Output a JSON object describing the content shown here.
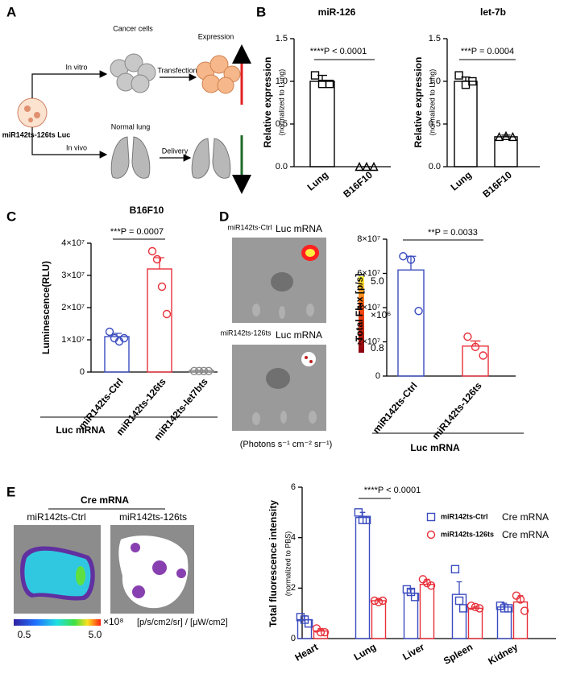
{
  "figure": {
    "panel_labels": [
      "A",
      "B",
      "C",
      "D",
      "E"
    ]
  },
  "schematic": {
    "cancer": "Cancer cells",
    "expression": "Expression",
    "in_vitro": "In vitro",
    "transfection": "Transfection",
    "construct": "miR142ts-126ts Luc",
    "lung": "Normal lung",
    "in_vivo": "In vivo",
    "delivery": "Delivery"
  },
  "imaging_d": {
    "top_prefix": "miR142ts-Ctrl",
    "top_suffix": "Luc mRNA",
    "bottom_prefix": "miR142ts-126ts",
    "bottom_suffix": "Luc mRNA",
    "cbar_max": "5.0",
    "cbar_scale": "×10⁶",
    "cbar_min": "0.8",
    "units": "(Photons s⁻¹ cm⁻² sr⁻¹)"
  },
  "imaging_e": {
    "title": "Cre mRNA",
    "left": "miR142ts-Ctrl",
    "right": "miR142ts-126ts",
    "cbar_min": "0.5",
    "cbar_max": "5.0",
    "cbar_scale": "×10⁸",
    "units": "[p/s/cm2/sr] / [μW/cm2]"
  },
  "chart_data": [
    {
      "type": "bar",
      "title": "miR-126",
      "ylabel": "Relative expression",
      "ylabel_sub": "(normalized to Lung)",
      "categories": [
        "Lung",
        "B16F10"
      ],
      "values": [
        1.0,
        0.0
      ],
      "errors": [
        0.07,
        0
      ],
      "points": [
        [
          1.07,
          0.97,
          0.97
        ],
        [
          0,
          0,
          0
        ]
      ],
      "markers": [
        "square",
        "triangle"
      ],
      "color": "#000000",
      "ylim": [
        0,
        1.5
      ],
      "yticks": [
        {
          "value": 0,
          "label": "0.0"
        },
        0.5,
        {
          "value": 1,
          "label": "1.0"
        },
        1.5
      ],
      "annotation": "****P < 0.0001"
    },
    {
      "type": "bar",
      "title": "let-7b",
      "ylabel": "Relative expression",
      "ylabel_sub": "(normalized to Lung)",
      "categories": [
        "Lung",
        "B16F10"
      ],
      "values": [
        1.0,
        0.35
      ],
      "errors": [
        0.05,
        0.02
      ],
      "points": [
        [
          1.07,
          0.96,
          1.0
        ],
        [
          0.35,
          0.36,
          0.35
        ]
      ],
      "markers": [
        "square",
        "triangle"
      ],
      "color": "#000000",
      "ylim": [
        0,
        1.5
      ],
      "yticks": [
        {
          "value": 0,
          "label": "0.0"
        },
        0.5,
        {
          "value": 1,
          "label": "1.0"
        },
        1.5
      ],
      "annotation": "***P = 0.0004"
    },
    {
      "type": "bar",
      "title": "B16F10",
      "ylabel": "Luminescence(RLU)",
      "categories": [
        "miR142ts-Ctrl",
        "miR142ts-126ts",
        "miR142ts-let7bts"
      ],
      "values": [
        11000000,
        32000000,
        500000
      ],
      "errors": [
        1000000,
        3500000,
        0
      ],
      "points": [
        [
          12500000,
          10500000,
          9500000,
          10500000
        ],
        [
          37500000,
          35000000,
          26500000,
          18000000
        ],
        [
          300000,
          300000,
          300000,
          300000
        ]
      ],
      "colors": [
        "#3b4cc0",
        "#e8303a",
        "#888888"
      ],
      "ylim": [
        0,
        40000000
      ],
      "yticks": [
        0,
        {
          "value": 10000000,
          "label": "1×10⁷"
        },
        {
          "value": 20000000,
          "label": "2×10⁷"
        },
        {
          "value": 30000000,
          "label": "3×10⁷"
        },
        {
          "value": 40000000,
          "label": "4×10⁷"
        }
      ],
      "annotation": "***P = 0.0007",
      "group_label": "Luc mRNA"
    },
    {
      "type": "bar",
      "ylabel": "Total Flux [p/s]",
      "categories": [
        "miR142ts-Ctrl",
        "miR142ts-126ts"
      ],
      "values": [
        62000000,
        17500000
      ],
      "errors": [
        8000000,
        3000000
      ],
      "points": [
        [
          70000000,
          68000000,
          38000000
        ],
        [
          23000000,
          17000000,
          12000000
        ]
      ],
      "colors": [
        "#3b4cc0",
        "#e8303a"
      ],
      "ylim": [
        0,
        80000000
      ],
      "yticks": [
        0,
        {
          "value": 20000000,
          "label": "2×10⁷"
        },
        {
          "value": 40000000,
          "label": "4×10⁷"
        },
        {
          "value": 60000000,
          "label": "6×10⁷"
        },
        {
          "value": 80000000,
          "label": "8×10⁷"
        }
      ],
      "annotation": "**P = 0.0033",
      "group_label": "Luc mRNA"
    },
    {
      "type": "bar",
      "ylabel": "Total fluorescence intensity",
      "ylabel_sub": "(normalized to PBS)",
      "categories": [
        "Heart",
        "Lung",
        "Liver",
        "Spleen",
        "Kidney"
      ],
      "series": [
        {
          "name": "miR142ts-Ctrl",
          "legend_suffix": "Cre mRNA",
          "color": "#3b4cc0",
          "marker": "square",
          "values": [
            0.75,
            4.8,
            1.8,
            1.75,
            1.25
          ],
          "errors": [
            0.15,
            0.2,
            0.15,
            0.5,
            0.15
          ],
          "points": [
            [
              0.85,
              0.75,
              0.6
            ],
            [
              5.0,
              4.7,
              4.7
            ],
            [
              1.95,
              1.85,
              1.65
            ],
            [
              2.75,
              1.5,
              1.2
            ],
            [
              1.3,
              1.2,
              1.2
            ]
          ]
        },
        {
          "name": "miR142ts-126ts",
          "legend_suffix": "Cre mRNA",
          "color": "#e8303a",
          "marker": "circle",
          "values": [
            0.3,
            1.5,
            2.15,
            1.2,
            1.45
          ],
          "errors": [
            0.1,
            0.05,
            0.2,
            0.05,
            0.25
          ],
          "points": [
            [
              0.4,
              0.25,
              0.25
            ],
            [
              1.5,
              1.45,
              1.5
            ],
            [
              2.35,
              2.2,
              2.1
            ],
            [
              1.3,
              1.25,
              1.2
            ],
            [
              1.7,
              1.55,
              1.1
            ]
          ]
        }
      ],
      "ylim": [
        0,
        6
      ],
      "yticks": [
        0,
        2,
        4,
        6
      ],
      "annotation": "****P < 0.0001"
    }
  ]
}
